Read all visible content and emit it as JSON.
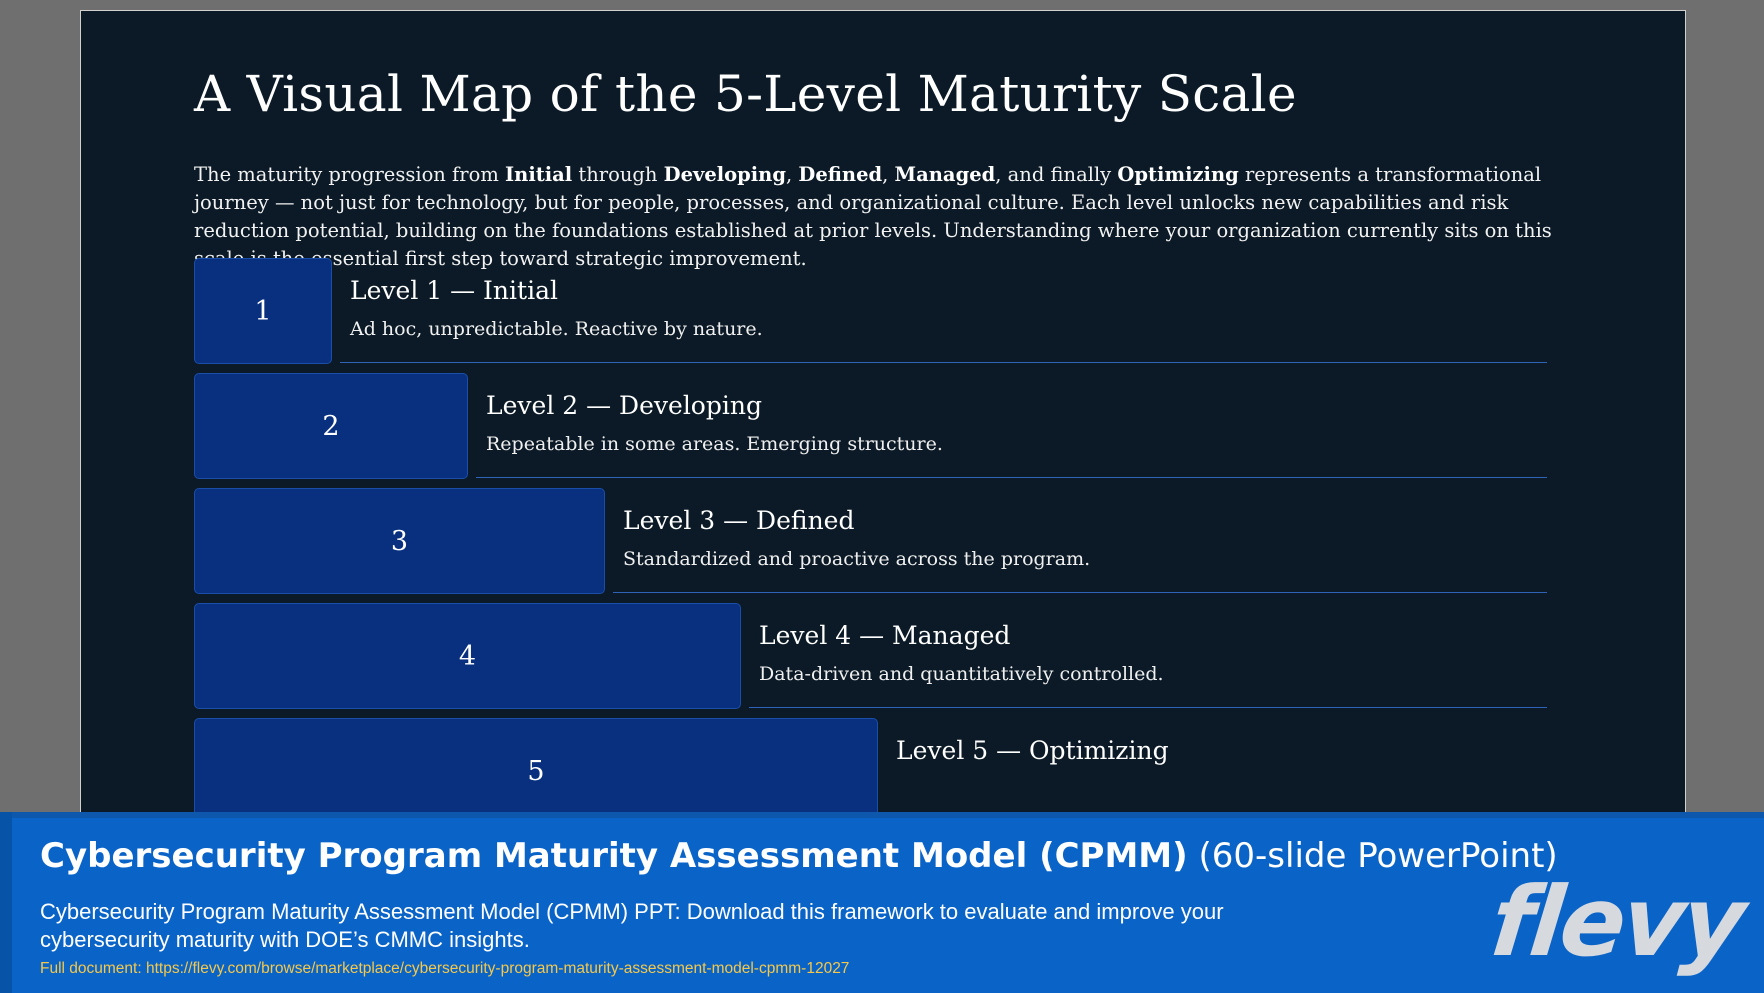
{
  "slide": {
    "title": "A Visual Map of the 5-Level Maturity Scale",
    "intro": {
      "p1": "The maturity progression from ",
      "b1": "Initial",
      "p2": " through ",
      "b2": "Developing",
      "p3": ", ",
      "b3": "Defined",
      "p4": ", ",
      "b4": "Managed",
      "p5": ", and finally ",
      "b5": "Optimizing",
      "p6": " represents a transformational journey — not just for technology, but for people, processes, and organizational culture. Each level unlocks new capabilities and risk reduction potential, building on the foundations established at prior levels. Understanding where your organization currently sits on this scale is the essential first step toward strategic improvement."
    },
    "levels": [
      {
        "number": "1",
        "title": "Level 1 — Initial",
        "description": "Ad hoc, unpredictable. Reactive by nature."
      },
      {
        "number": "2",
        "title": "Level 2 — Developing",
        "description": "Repeatable in some areas. Emerging structure."
      },
      {
        "number": "3",
        "title": "Level 3 — Defined",
        "description": "Standardized and proactive across the program."
      },
      {
        "number": "4",
        "title": "Level 4 — Managed",
        "description": "Data-driven and quantitatively controlled."
      },
      {
        "number": "5",
        "title": "Level 5 — Optimizing",
        "description": ""
      }
    ]
  },
  "banner": {
    "title_bold": "Cybersecurity Program Maturity Assessment Model (CPMM)",
    "title_suffix": " (60-slide PowerPoint)",
    "description": "Cybersecurity Program Maturity Assessment Model (CPMM) PPT: Download this framework to evaluate and improve your cybersecurity maturity with DOE’s CMMC insights.",
    "link_text": "Full document: https://flevy.com/browse/marketplace/cybersecurity-program-maturity-assessment-model-cpmm-12027",
    "logo_text": "flevy"
  },
  "colors": {
    "slide_bg": "#0b1a26",
    "level_box": "#08307f",
    "banner_bg": "#0a64c8",
    "link": "#f5c84a"
  }
}
